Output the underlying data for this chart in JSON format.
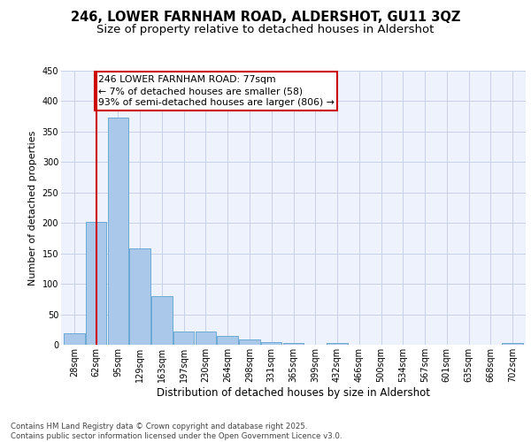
{
  "title_line1": "246, LOWER FARNHAM ROAD, ALDERSHOT, GU11 3QZ",
  "title_line2": "Size of property relative to detached houses in Aldershot",
  "xlabel": "Distribution of detached houses by size in Aldershot",
  "ylabel": "Number of detached properties",
  "categories": [
    "28sqm",
    "62sqm",
    "95sqm",
    "129sqm",
    "163sqm",
    "197sqm",
    "230sqm",
    "264sqm",
    "298sqm",
    "331sqm",
    "365sqm",
    "399sqm",
    "432sqm",
    "466sqm",
    "500sqm",
    "534sqm",
    "567sqm",
    "601sqm",
    "635sqm",
    "668sqm",
    "702sqm"
  ],
  "values": [
    19,
    202,
    373,
    158,
    80,
    22,
    22,
    15,
    8,
    5,
    3,
    0,
    3,
    0,
    0,
    0,
    0,
    0,
    0,
    0,
    3
  ],
  "bar_color": "#aac9ea",
  "bar_edge_color": "#6aaad4",
  "vline_x": 1.0,
  "vline_color": "#cc0000",
  "annotation_title": "246 LOWER FARNHAM ROAD: 77sqm",
  "annotation_line1": "← 7% of detached houses are smaller (58)",
  "annotation_line2": "93% of semi-detached houses are larger (806) →",
  "annotation_box_color": "#ffffff",
  "annotation_box_edge": "#cc0000",
  "ylim": [
    0,
    450
  ],
  "yticks": [
    0,
    50,
    100,
    150,
    200,
    250,
    300,
    350,
    400,
    450
  ],
  "footer_line1": "Contains HM Land Registry data © Crown copyright and database right 2025.",
  "footer_line2": "Contains public sector information licensed under the Open Government Licence v3.0.",
  "bg_color": "#eef2fc",
  "grid_color": "#c8d0e8",
  "title_fontsize": 10.5,
  "subtitle_fontsize": 9.5,
  "annotation_fontsize": 7.8,
  "ylabel_fontsize": 8,
  "xlabel_fontsize": 8.5,
  "tick_fontsize": 7,
  "footer_fontsize": 6.2
}
